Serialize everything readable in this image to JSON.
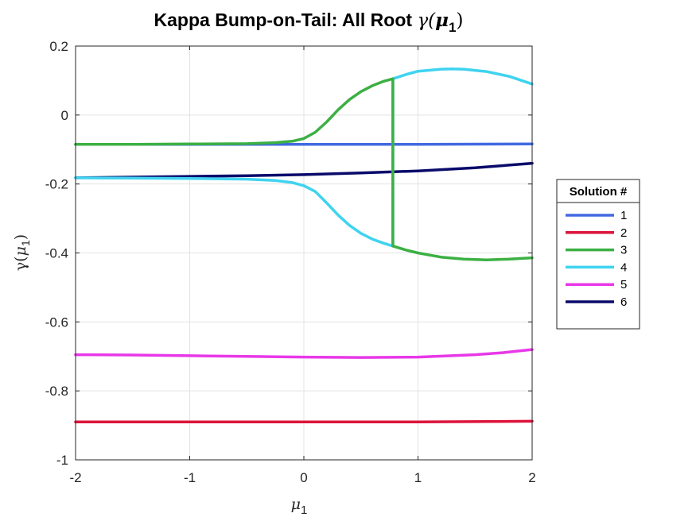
{
  "chart_data": {
    "type": "line",
    "title_main": "Kappa Bump-on-Tail: All Root ",
    "title_symbol": "γ(",
    "title_var": "μ",
    "title_sub": "1",
    "title_close": ")",
    "xlabel_var": "μ",
    "xlabel_sub": "1",
    "ylabel_symbol": "γ(",
    "ylabel_var": "μ",
    "ylabel_sub": "1",
    "ylabel_close": ")",
    "xlim": [
      -2,
      2
    ],
    "ylim": [
      -1,
      0.2
    ],
    "xticks": [
      -2,
      -1,
      0,
      1,
      2
    ],
    "xtick_labels": [
      "-2",
      "-1",
      "0",
      "1",
      "2"
    ],
    "yticks": [
      -1,
      -0.8,
      -0.6,
      -0.4,
      -0.2,
      0,
      0.2
    ],
    "ytick_labels": [
      "-1",
      "-0.8",
      "-0.6",
      "-0.4",
      "-0.2",
      "0",
      "0.2"
    ],
    "grid": true,
    "legend_title": "Solution #",
    "legend_position": "outside-right",
    "series": [
      {
        "name": "1",
        "color": "#4169E1",
        "points": [
          [
            -2,
            -0.085
          ],
          [
            -1,
            -0.085
          ],
          [
            0,
            -0.085
          ],
          [
            1,
            -0.085
          ],
          [
            2,
            -0.084
          ]
        ]
      },
      {
        "name": "2",
        "color": "#DC143C",
        "points": [
          [
            -2,
            -0.89
          ],
          [
            -1,
            -0.89
          ],
          [
            0,
            -0.89
          ],
          [
            1,
            -0.89
          ],
          [
            2,
            -0.888
          ]
        ]
      },
      {
        "name": "3",
        "color": "#3CB043",
        "points": [
          [
            -2,
            -0.085
          ],
          [
            -1.5,
            -0.085
          ],
          [
            -1,
            -0.084
          ],
          [
            -0.5,
            -0.083
          ],
          [
            -0.25,
            -0.08
          ],
          [
            -0.1,
            -0.076
          ],
          [
            0,
            -0.068
          ],
          [
            0.1,
            -0.05
          ],
          [
            0.2,
            -0.02
          ],
          [
            0.3,
            0.015
          ],
          [
            0.4,
            0.045
          ],
          [
            0.5,
            0.068
          ],
          [
            0.6,
            0.085
          ],
          [
            0.7,
            0.098
          ],
          [
            0.78,
            0.105
          ],
          [
            0.78,
            -0.38
          ],
          [
            0.9,
            -0.392
          ],
          [
            1.0,
            -0.4
          ],
          [
            1.2,
            -0.412
          ],
          [
            1.4,
            -0.418
          ],
          [
            1.6,
            -0.42
          ],
          [
            1.8,
            -0.418
          ],
          [
            2,
            -0.414
          ]
        ]
      },
      {
        "name": "4",
        "color": "#3FD3F0",
        "points": [
          [
            -2,
            -0.182
          ],
          [
            -1.5,
            -0.183
          ],
          [
            -1,
            -0.184
          ],
          [
            -0.5,
            -0.186
          ],
          [
            -0.25,
            -0.19
          ],
          [
            -0.1,
            -0.196
          ],
          [
            0,
            -0.205
          ],
          [
            0.1,
            -0.222
          ],
          [
            0.2,
            -0.255
          ],
          [
            0.3,
            -0.29
          ],
          [
            0.4,
            -0.32
          ],
          [
            0.5,
            -0.343
          ],
          [
            0.6,
            -0.36
          ],
          [
            0.7,
            -0.372
          ],
          [
            0.78,
            -0.38
          ],
          [
            0.78,
            0.105
          ],
          [
            0.9,
            0.118
          ],
          [
            1.0,
            0.127
          ],
          [
            1.2,
            0.133
          ],
          [
            1.3,
            0.134
          ],
          [
            1.4,
            0.133
          ],
          [
            1.6,
            0.126
          ],
          [
            1.8,
            0.112
          ],
          [
            2,
            0.09
          ]
        ]
      },
      {
        "name": "5",
        "color": "#E838E8",
        "points": [
          [
            -2,
            -0.695
          ],
          [
            -1.5,
            -0.696
          ],
          [
            -1,
            -0.698
          ],
          [
            -0.5,
            -0.7
          ],
          [
            0,
            -0.702
          ],
          [
            0.5,
            -0.703
          ],
          [
            1,
            -0.702
          ],
          [
            1.5,
            -0.695
          ],
          [
            1.75,
            -0.689
          ],
          [
            2,
            -0.68
          ]
        ]
      },
      {
        "name": "6",
        "color": "#0A0A6B",
        "points": [
          [
            -2,
            -0.182
          ],
          [
            -1.5,
            -0.18
          ],
          [
            -1,
            -0.178
          ],
          [
            -0.5,
            -0.176
          ],
          [
            0,
            -0.173
          ],
          [
            0.5,
            -0.168
          ],
          [
            1,
            -0.162
          ],
          [
            1.5,
            -0.153
          ],
          [
            2,
            -0.14
          ]
        ]
      }
    ]
  }
}
